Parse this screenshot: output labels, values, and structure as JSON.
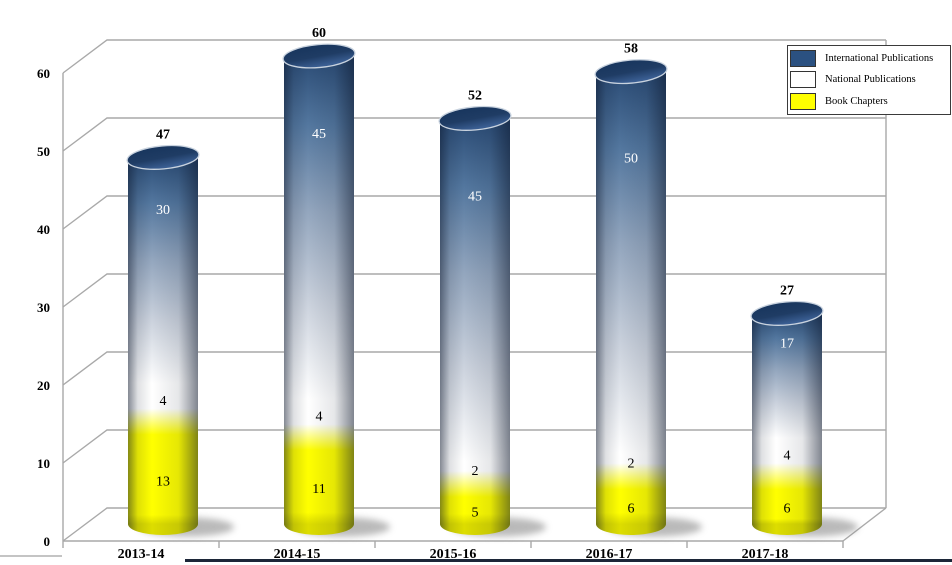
{
  "chart_data": {
    "type": "bar",
    "subtype": "3d-cylinder-stacked",
    "title": "",
    "xlabel": "",
    "ylabel": "",
    "categories": [
      "2013-14",
      "2014-15",
      "2015-16",
      "2016-17",
      "2017-18"
    ],
    "series": [
      {
        "name": "International Publications",
        "color": "#2B5181",
        "values": [
          30,
          45,
          45,
          50,
          17
        ]
      },
      {
        "name": "National Publications",
        "color": "#FFFFFF",
        "values": [
          4,
          4,
          2,
          2,
          4
        ]
      },
      {
        "name": "Book Chapters",
        "color": "#FFFF00",
        "values": [
          13,
          11,
          5,
          6,
          6
        ]
      }
    ],
    "stack_order_bottom_to_top": [
      "Book Chapters",
      "National Publications",
      "International Publications"
    ],
    "totals": [
      47,
      60,
      52,
      58,
      27
    ],
    "yticks": [
      0,
      10,
      20,
      30,
      40,
      50,
      60
    ],
    "ylim": [
      0,
      60
    ],
    "grid": true,
    "legend_position": "top-right"
  },
  "colors": {
    "grid_line": "#A9A9A9",
    "cylinder_top": "#1F3C64",
    "label_on_blue": "#FFFFFF",
    "label_default": "#000000",
    "page_rule_dark": "#1C2638",
    "page_rule_light": "#C4C4C4"
  }
}
